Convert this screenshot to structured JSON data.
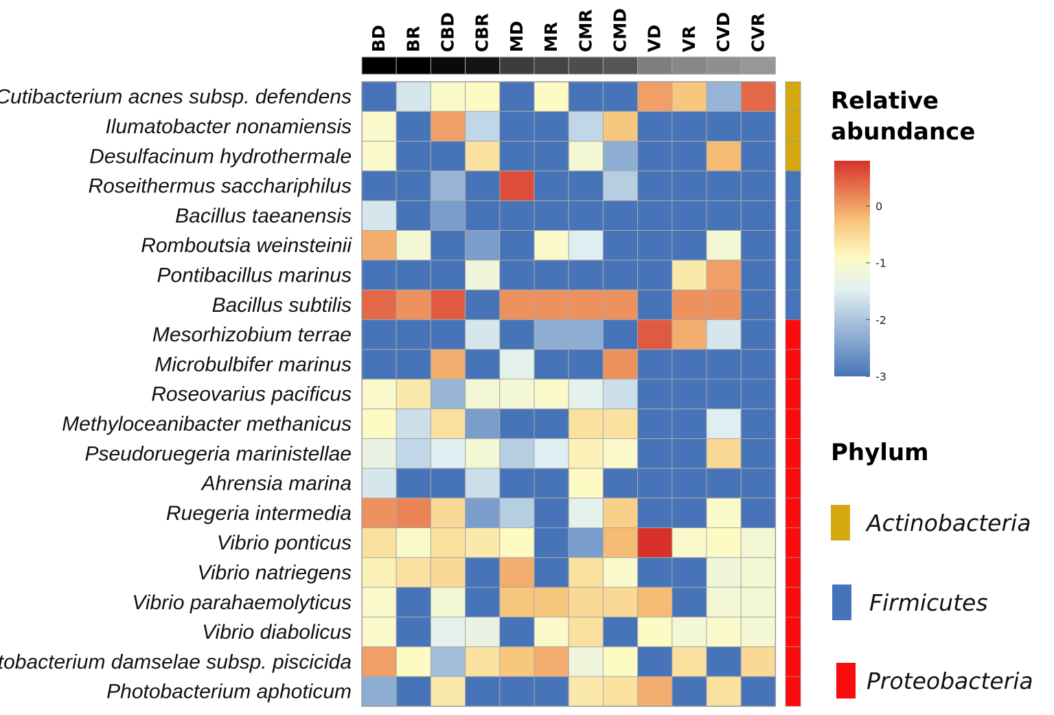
{
  "chart_data": {
    "type": "heatmap",
    "columns": [
      "BD",
      "BR",
      "CBD",
      "CBR",
      "MD",
      "MR",
      "CMR",
      "CMD",
      "VD",
      "VR",
      "CVD",
      "CVR"
    ],
    "column_group_colors": [
      "#000000",
      "#000000",
      "#0a0a0a",
      "#141414",
      "#3c3c3c",
      "#444444",
      "#4d4d4d",
      "#555555",
      "#7e7e7e",
      "#878787",
      "#8f8f8f",
      "#979797"
    ],
    "rows": [
      "Cutibacterium acnes subsp. defendens",
      "Ilumatobacter nonamiensis",
      "Desulfacinum hydrothermale",
      "Roseithermus sacchariphilus",
      "Bacillus taeanensis",
      "Romboutsia weinsteinii",
      "Pontibacillus marinus",
      "Bacillus subtilis",
      "Mesorhizobium terrae",
      "Microbulbifer marinus",
      "Roseovarius pacificus",
      "Methyloceanibacter methanicus",
      "Pseudoruegeria marinistellae",
      "Ahrensia marina",
      "Ruegeria intermedia",
      "Vibrio ponticus",
      "Vibrio natriegens",
      "Vibrio parahaemolyticus",
      "Vibrio diabolicus",
      "Photobacterium damselae subsp. piscicida",
      "Photobacterium aphoticum"
    ],
    "row_phylum": [
      "Actinobacteria",
      "Actinobacteria",
      "Actinobacteria",
      "Firmicutes",
      "Firmicutes",
      "Firmicutes",
      "Firmicutes",
      "Firmicutes",
      "Proteobacteria",
      "Proteobacteria",
      "Proteobacteria",
      "Proteobacteria",
      "Proteobacteria",
      "Proteobacteria",
      "Proteobacteria",
      "Proteobacteria",
      "Proteobacteria",
      "Proteobacteria",
      "Proteobacteria",
      "Proteobacteria",
      "Proteobacteria"
    ],
    "values": [
      [
        -3,
        -1.6,
        -1.0,
        -0.9,
        -3,
        -0.9,
        -3,
        -3,
        0.0,
        -0.3,
        -2.2,
        0.4
      ],
      [
        -1.0,
        -3,
        0.0,
        -1.8,
        -3,
        -3,
        -1.8,
        -0.3,
        -3,
        -3,
        -3,
        -3
      ],
      [
        -1.0,
        -3,
        -3,
        -0.6,
        -3,
        -3,
        -1.1,
        -2.3,
        -3,
        -3,
        -0.2,
        -3
      ],
      [
        -3,
        -3,
        -2.2,
        -3,
        0.6,
        -3,
        -3,
        -1.9,
        -3,
        -3,
        -3,
        -3
      ],
      [
        -1.6,
        -3,
        -2.5,
        -3,
        -3,
        -3,
        -3,
        -3,
        -3,
        -3,
        -3,
        -3
      ],
      [
        -0.1,
        -1.1,
        -3,
        -2.5,
        -3,
        -1.0,
        -1.5,
        -3,
        -3,
        -3,
        -1.1,
        -3
      ],
      [
        -3,
        -3,
        -3,
        -1.2,
        -3,
        -3,
        -3,
        -3,
        -3,
        -0.7,
        0.0,
        -3
      ],
      [
        0.4,
        0.1,
        0.5,
        -3,
        0.1,
        0.1,
        0.1,
        0.1,
        -3,
        0.1,
        0.1,
        -3
      ],
      [
        -3,
        -3,
        -3,
        -1.6,
        -3,
        -2.3,
        -2.3,
        -3,
        0.5,
        -0.1,
        -1.6,
        -3
      ],
      [
        -3,
        -3,
        -0.1,
        -3,
        -1.4,
        -3,
        -3,
        0.1,
        -3,
        -3,
        -3,
        -3
      ],
      [
        -1.0,
        -0.7,
        -2.2,
        -1.1,
        -1.1,
        -1.0,
        -1.4,
        -1.7,
        -3,
        -3,
        -3,
        -3
      ],
      [
        -0.9,
        -1.7,
        -0.6,
        -2.5,
        -3,
        -3,
        -0.6,
        -0.6,
        -3,
        -3,
        -1.5,
        -3
      ],
      [
        -1.3,
        -1.8,
        -1.5,
        -1.1,
        -1.9,
        -1.5,
        -0.8,
        -1.0,
        -3,
        -3,
        -0.5,
        -3
      ],
      [
        -1.6,
        -3,
        -3,
        -1.7,
        -3,
        -3,
        -0.9,
        -3,
        -3,
        -3,
        -3,
        -3
      ],
      [
        0.1,
        0.2,
        -0.5,
        -2.5,
        -1.9,
        -3,
        -1.4,
        -0.4,
        -3,
        -3,
        -1.0,
        -3
      ],
      [
        -0.6,
        -1.0,
        -0.6,
        -0.7,
        -0.9,
        -3,
        -2.5,
        -0.2,
        0.8,
        -1.0,
        -0.9,
        -1.1
      ],
      [
        -0.8,
        -0.6,
        -0.5,
        -3,
        -0.1,
        -3,
        -0.6,
        -1.0,
        -3,
        -3,
        -1.2,
        -1.1
      ],
      [
        -1.0,
        -3,
        -1.1,
        -3,
        -0.3,
        -0.3,
        -0.5,
        -0.5,
        -0.2,
        -3,
        -1.1,
        -1.1
      ],
      [
        -1.0,
        -3,
        -1.4,
        -1.3,
        -3,
        -1.0,
        -0.6,
        -3,
        -0.9,
        -1.1,
        -1.0,
        -1.1
      ],
      [
        0.0,
        -0.9,
        -2.1,
        -0.6,
        -0.3,
        -0.1,
        -1.2,
        -0.9,
        -3,
        -0.6,
        -3,
        -0.5
      ],
      [
        -2.3,
        -3,
        -0.7,
        -3,
        -3,
        -3,
        -0.7,
        -0.6,
        -0.1,
        -3,
        -0.6,
        -3
      ]
    ],
    "scale": {
      "title_line1": "Relative",
      "title_line2": "abundance",
      "min": -3,
      "max": 0.8,
      "ticks": [
        0,
        -1,
        -2,
        -3
      ],
      "tick_labels": [
        "0",
        "-1",
        "-2",
        "-3"
      ],
      "color_stops": [
        "#4774b8",
        "#e1f0f2",
        "#fdfbc4",
        "#f8c47a",
        "#d7312a"
      ]
    },
    "phylum_legend": {
      "title": "Phylum",
      "items": [
        {
          "name": "Actinobacteria",
          "color": "#d4a80e"
        },
        {
          "name": "Firmicutes",
          "color": "#4674ba"
        },
        {
          "name": "Proteobacteria",
          "color": "#fb0b0b"
        }
      ]
    }
  }
}
